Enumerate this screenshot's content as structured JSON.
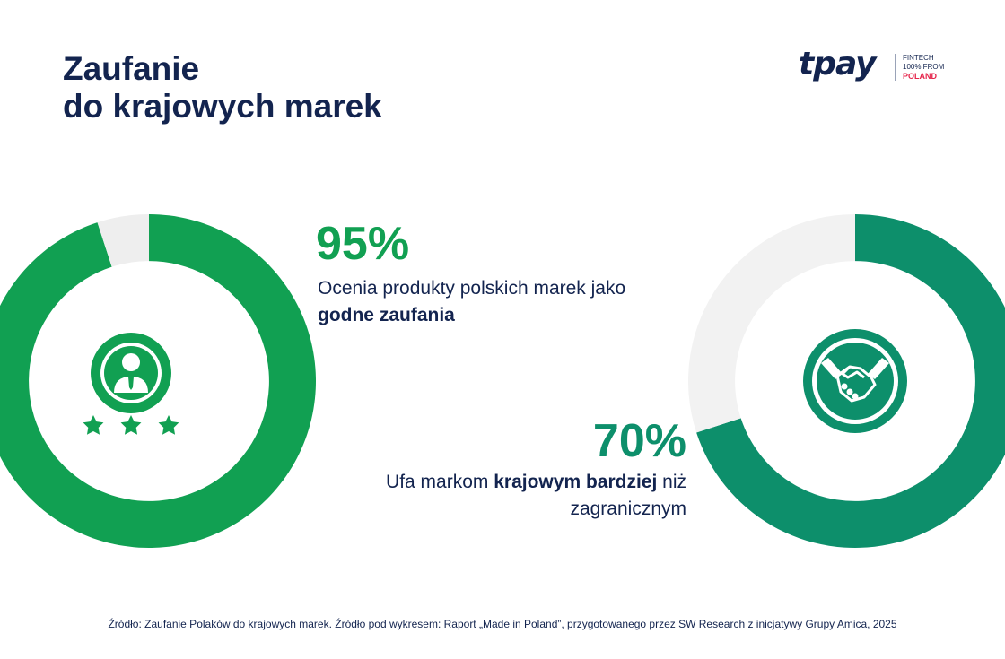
{
  "title": {
    "line1": "Zaufanie",
    "line2": "do krajowych marek"
  },
  "logo": {
    "wordmark": "tpay",
    "tag_line1": "FINTECH",
    "tag_line2": "100% FROM",
    "tag_line3": "POLAND"
  },
  "stats": [
    {
      "value": "95%",
      "text_pre": "Ocenia produkty polskich marek jako ",
      "text_bold": "godne zaufania"
    },
    {
      "value": "70%",
      "text_pre": "Ufa markom ",
      "text_bold": "krajowym bardziej",
      "text_post": " niż zagranicznym"
    }
  ],
  "icons": {
    "left": "person-with-stars-icon",
    "right": "handshake-icon"
  },
  "source": "Źródło: Zaufanie Polaków do krajowych marek. Źródło pod wykresem: Raport „Made in Poland”, przygotowanego przez SW Research z inicjatywy Grupy Amica, 2025",
  "chart_data": [
    {
      "type": "pie",
      "labels": [
        "Ocenia produkty polskich marek jako godne zaufania",
        ""
      ],
      "values": [
        95,
        5
      ],
      "colors": [
        "#11a052",
        "#eeeeee"
      ]
    },
    {
      "type": "pie",
      "labels": [
        "Ufa markom krajowym bardziej niż zagranicznym",
        ""
      ],
      "values": [
        70,
        30
      ],
      "colors": [
        "#0d8f6b",
        "#f2f2f2"
      ]
    }
  ]
}
